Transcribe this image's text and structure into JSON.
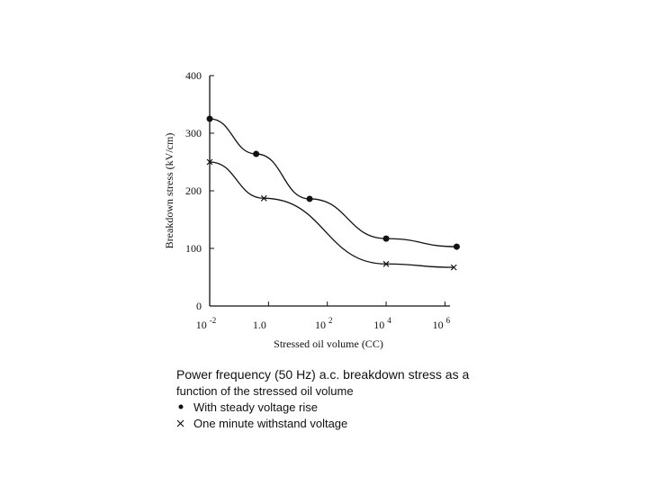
{
  "chart_data": {
    "type": "line",
    "x_label": "Stressed oil volume (CC)",
    "y_label": "Breakdown stress (kV/cm)",
    "x_log": true,
    "xlim": [
      0.01,
      3000000
    ],
    "ylim": [
      0,
      400
    ],
    "xticks": [
      {
        "value": 0.01,
        "label": "10",
        "exp": "-2"
      },
      {
        "value": 1,
        "label": "1.0"
      },
      {
        "value": 100,
        "label": "10",
        "exp": "2"
      },
      {
        "value": 10000,
        "label": "10",
        "exp": "4"
      },
      {
        "value": 1000000,
        "label": "10",
        "exp": "6"
      }
    ],
    "yticks": [
      0,
      100,
      200,
      300,
      400
    ],
    "caption": [
      "Power frequency (50 Hz) a.c. breakdown stress as a",
      "function of the stressed oil volume"
    ],
    "series": [
      {
        "name": "With steady voltage rise",
        "marker": "dot",
        "color": "#111",
        "x": [
          0.01,
          0.38,
          25,
          10000,
          2500000
        ],
        "values": [
          325,
          264,
          186,
          117,
          103
        ]
      },
      {
        "name": "One minute withstand voltage",
        "marker": "cross",
        "color": "#111",
        "x": [
          0.01,
          0.7,
          10000,
          2000000
        ],
        "values": [
          250,
          187,
          73,
          67
        ]
      }
    ]
  }
}
